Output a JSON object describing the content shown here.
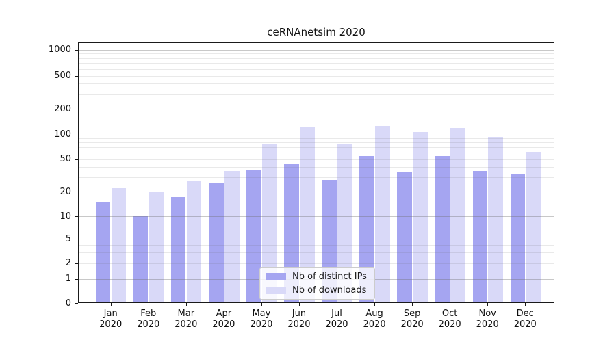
{
  "chart_data": {
    "type": "bar",
    "title": "ceRNAnetsim 2020",
    "categories": [
      "Jan 2020",
      "Feb 2020",
      "Mar 2020",
      "Apr 2020",
      "May 2020",
      "Jun 2020",
      "Jul 2020",
      "Aug 2020",
      "Sep 2020",
      "Oct 2020",
      "Nov 2020",
      "Dec 2020"
    ],
    "series": [
      {
        "name": "Nb of distinct IPs",
        "color": "#a5a5f1",
        "values": [
          15,
          10,
          17,
          25,
          37,
          43,
          28,
          55,
          35,
          55,
          36,
          33
        ]
      },
      {
        "name": "Nb of downloads",
        "color": "#d9d9f8",
        "values": [
          22,
          20,
          27,
          36,
          77,
          124,
          77,
          127,
          108,
          119,
          92,
          62
        ]
      }
    ],
    "xlabel": "",
    "ylabel": "",
    "yscale": "symlog",
    "ylim": [
      0,
      1000
    ],
    "yticks": [
      1000,
      500,
      200,
      100,
      50,
      20,
      10,
      5,
      2,
      1,
      0
    ],
    "grid": "horizontal, major decades darker + minor log subdivisions lighter",
    "legend": {
      "position": "inside lower-center",
      "entries": [
        "Nb of distinct IPs",
        "Nb of downloads"
      ]
    }
  },
  "colors": {
    "bar_distinct_ips": "#a5a5f1",
    "bar_downloads": "#d9d9f8",
    "axis": "#1a1a1a",
    "grid_major": "#c8c8c8",
    "grid_minor": "#e9e9e9",
    "background": "#ffffff",
    "legend_border": "#cccccc"
  }
}
